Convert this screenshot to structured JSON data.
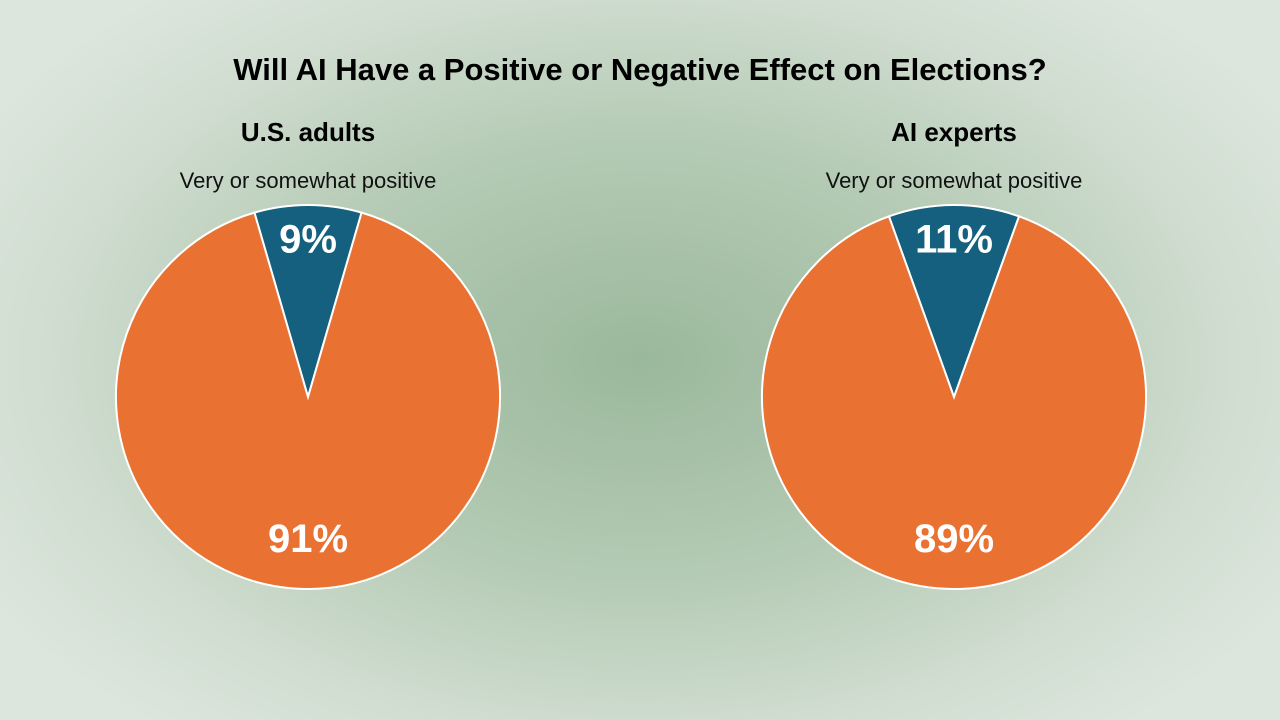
{
  "title": "Will AI Have a Positive or Negative Effect on Elections?",
  "chart_data": [
    {
      "type": "pie",
      "title": "U.S. adults",
      "slices": [
        {
          "label": "Very or somewhat positive",
          "value": 9,
          "display": "9%",
          "color": "#15607f"
        },
        {
          "value": 91,
          "display": "91%",
          "color": "#e97132"
        }
      ]
    },
    {
      "type": "pie",
      "title": "AI experts",
      "slices": [
        {
          "label": "Very or somewhat positive",
          "value": 11,
          "display": "11%",
          "color": "#15607f"
        },
        {
          "value": 89,
          "display": "89%",
          "color": "#e97132"
        }
      ]
    }
  ]
}
